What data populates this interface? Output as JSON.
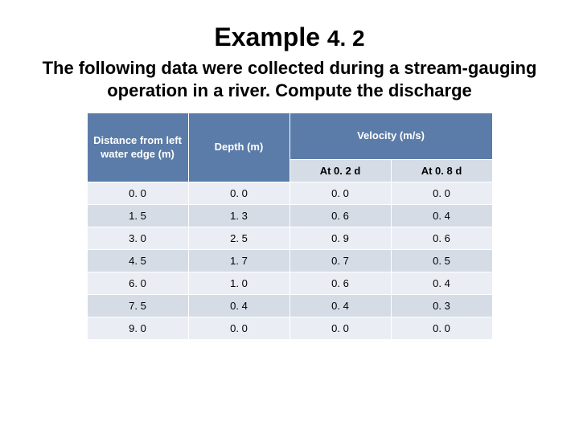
{
  "title_main": "Example",
  "title_num": "4. 2",
  "subtitle": "The following data were collected during a stream-gauging operation in a river. Compute the discharge",
  "table": {
    "header": {
      "col1": "Distance from left water edge (m)",
      "col2": "Depth (m)",
      "col3": "Velocity (m/s)",
      "sub1": "At 0. 2 d",
      "sub2": "At 0. 8 d"
    },
    "rows": [
      {
        "c1": "0. 0",
        "c2": "0. 0",
        "c3": "0. 0",
        "c4": "0. 0"
      },
      {
        "c1": "1. 5",
        "c2": "1. 3",
        "c3": "0. 6",
        "c4": "0. 4"
      },
      {
        "c1": "3. 0",
        "c2": "2. 5",
        "c3": "0. 9",
        "c4": "0. 6"
      },
      {
        "c1": "4. 5",
        "c2": "1. 7",
        "c3": "0. 7",
        "c4": "0. 5"
      },
      {
        "c1": "6. 0",
        "c2": "1. 0",
        "c3": "0. 6",
        "c4": "0. 4"
      },
      {
        "c1": "7. 5",
        "c2": "0. 4",
        "c3": "0. 4",
        "c4": "0. 3"
      },
      {
        "c1": "9. 0",
        "c2": "0. 0",
        "c3": "0. 0",
        "c4": "0. 0"
      }
    ],
    "header_bg": "#5b7ca8",
    "header_fg": "#ffffff",
    "band_light": "#eaeef4",
    "band_dark": "#d5dce6",
    "border_color": "#ffffff",
    "font_size": 13
  }
}
